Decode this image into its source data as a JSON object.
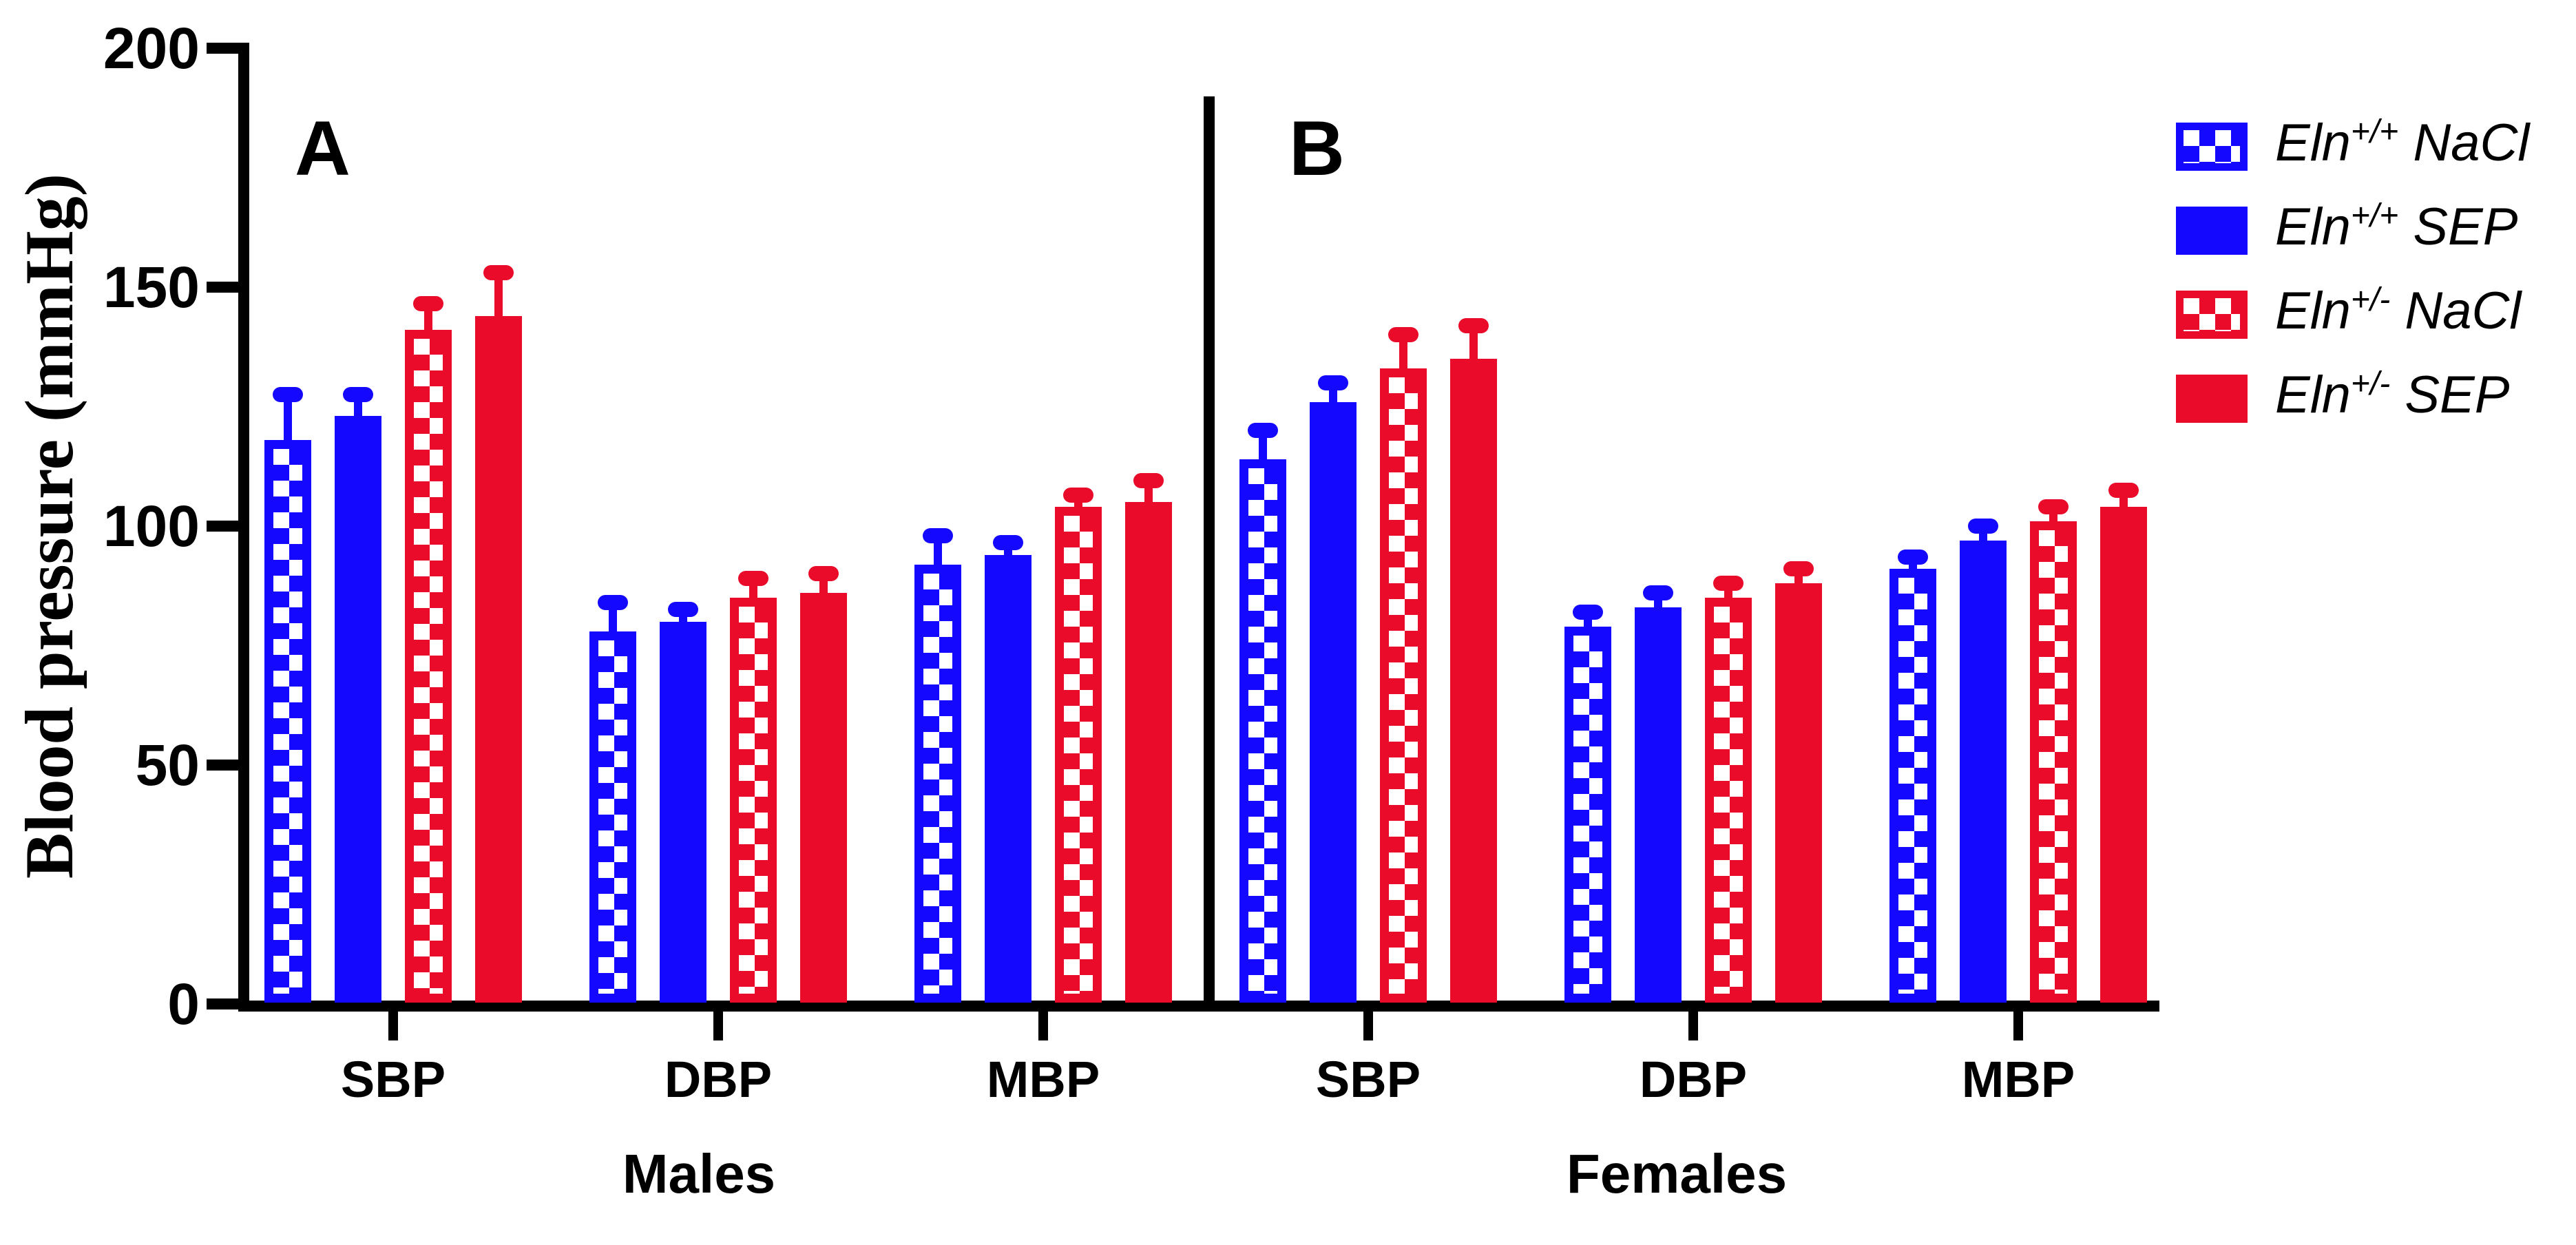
{
  "colors": {
    "blue": "#1508FE",
    "red": "#EA0A2A",
    "black": "#000000",
    "white": "#FFFFFF"
  },
  "chart_data": {
    "type": "bar",
    "title": "",
    "ylabel": "Blood pressure (mmHg)",
    "ylim": [
      0,
      200
    ],
    "yticks": [
      0,
      50,
      100,
      150,
      200
    ],
    "categories": [
      "SBP",
      "DBP",
      "MBP"
    ],
    "panels": [
      {
        "label": "A",
        "sex": "Males"
      },
      {
        "label": "B",
        "sex": "Females"
      }
    ],
    "error_bars": "upper SEM whiskers with caps",
    "legend_position": "right",
    "series": [
      {
        "name": "Eln+/+ NaCl",
        "gene": "Eln",
        "genotype_sup": "+/+",
        "treatment": "NaCl",
        "color": "blue",
        "fill": "checkerboard",
        "values": {
          "Males": [
            118,
            78,
            92
          ],
          "Females": [
            114,
            79,
            91
          ]
        },
        "sem": {
          "Males": [
            9.5,
            6,
            6
          ],
          "Females": [
            6,
            3,
            2.5
          ]
        }
      },
      {
        "name": "Eln+/+ SEP",
        "gene": "Eln",
        "genotype_sup": "+/+",
        "treatment": "SEP",
        "color": "blue",
        "fill": "solid",
        "values": {
          "Males": [
            123,
            80,
            94
          ],
          "Females": [
            126,
            83,
            97
          ]
        },
        "sem": {
          "Males": [
            4.5,
            2.5,
            2.5
          ],
          "Females": [
            4,
            3,
            3
          ]
        }
      },
      {
        "name": "Eln+/- NaCl",
        "gene": "Eln",
        "genotype_sup": "+/-",
        "treatment": "NaCl",
        "color": "red",
        "fill": "checkerboard",
        "values": {
          "Males": [
            141,
            85,
            104
          ],
          "Females": [
            133,
            85,
            101
          ]
        },
        "sem": {
          "Males": [
            5.5,
            4,
            2.5
          ],
          "Females": [
            7,
            3,
            3
          ]
        }
      },
      {
        "name": "Eln+/- SEP",
        "gene": "Eln",
        "genotype_sup": "+/-",
        "treatment": "SEP",
        "color": "red",
        "fill": "solid",
        "values": {
          "Males": [
            144,
            86,
            105
          ],
          "Females": [
            135,
            88,
            104
          ]
        },
        "sem": {
          "Males": [
            9,
            4,
            4.5
          ],
          "Females": [
            7,
            3,
            3.5
          ]
        }
      }
    ]
  }
}
